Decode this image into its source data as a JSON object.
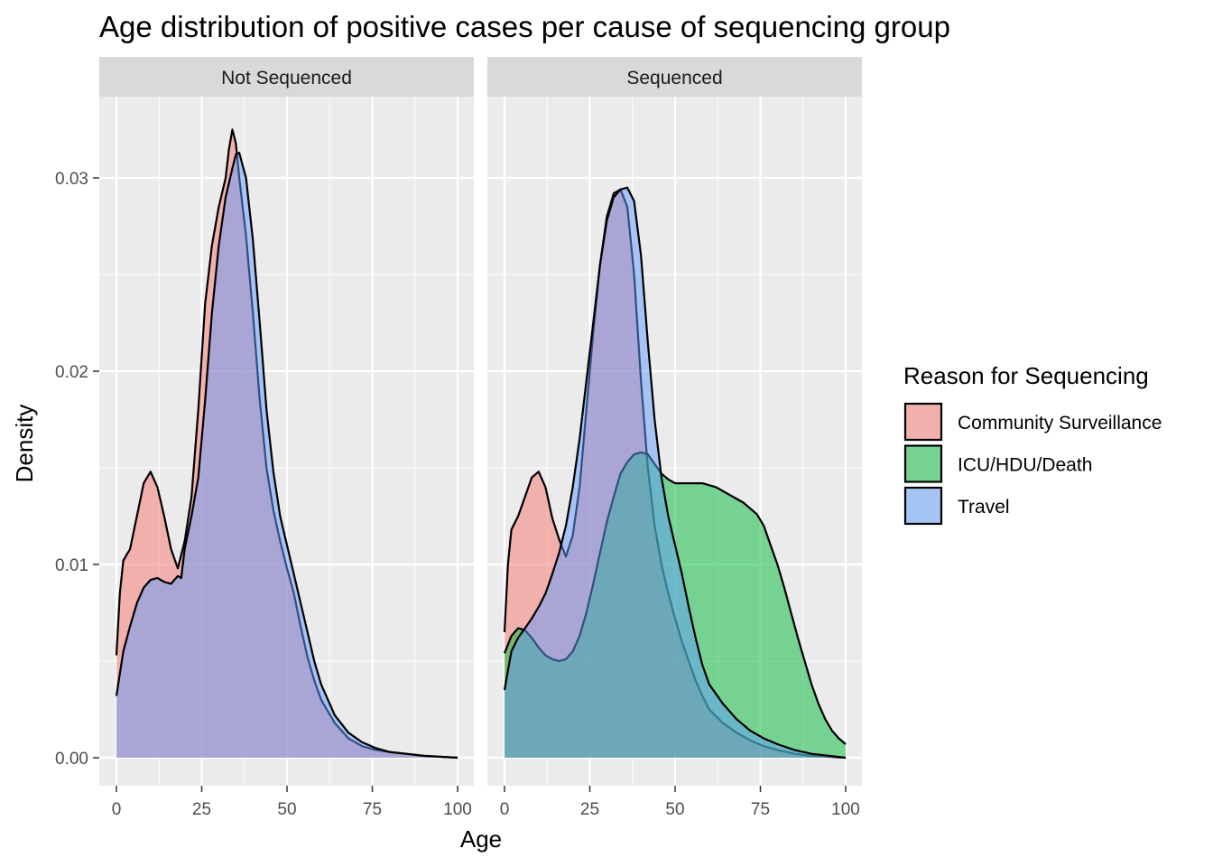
{
  "chart_data": {
    "type": "area",
    "title": "Age distribution of positive cases per cause of sequencing group",
    "xlabel": "Age",
    "ylabel": "Density",
    "xlim": [
      0,
      100
    ],
    "ylim": [
      0,
      0.033
    ],
    "x_ticks": [
      "0",
      "25",
      "50",
      "75",
      "100"
    ],
    "y_ticks": [
      "0.00",
      "0.01",
      "0.02",
      "0.03"
    ],
    "grid": true,
    "legend": {
      "title": "Reason for Sequencing",
      "placement": "right",
      "entries": [
        {
          "label": "Community Surveillance",
          "color": "#F8766D"
        },
        {
          "label": "ICU/HDU/Death",
          "color": "#00BA38"
        },
        {
          "label": "Travel",
          "color": "#619CFF"
        }
      ]
    },
    "panels": [
      {
        "label": "Not Sequenced",
        "series": [
          {
            "name": "Community Surveillance",
            "color": "#F8766D",
            "points": [
              [
                0,
                0.0053
              ],
              [
                1,
                0.0085
              ],
              [
                2,
                0.0102
              ],
              [
                4,
                0.0108
              ],
              [
                6,
                0.0125
              ],
              [
                8,
                0.0142
              ],
              [
                10,
                0.0148
              ],
              [
                12,
                0.014
              ],
              [
                14,
                0.0125
              ],
              [
                16,
                0.0108
              ],
              [
                18,
                0.0098
              ],
              [
                20,
                0.0112
              ],
              [
                22,
                0.0135
              ],
              [
                24,
                0.018
              ],
              [
                26,
                0.0235
              ],
              [
                28,
                0.0265
              ],
              [
                30,
                0.0285
              ],
              [
                32,
                0.03
              ],
              [
                33,
                0.0315
              ],
              [
                34,
                0.0325
              ],
              [
                35,
                0.0318
              ],
              [
                36,
                0.03
              ],
              [
                38,
                0.027
              ],
              [
                40,
                0.023
              ],
              [
                42,
                0.0185
              ],
              [
                44,
                0.015
              ],
              [
                46,
                0.0128
              ],
              [
                48,
                0.0112
              ],
              [
                50,
                0.0098
              ],
              [
                52,
                0.0085
              ],
              [
                54,
                0.0068
              ],
              [
                56,
                0.0052
              ],
              [
                58,
                0.004
              ],
              [
                60,
                0.003
              ],
              [
                64,
                0.0018
              ],
              [
                68,
                0.001
              ],
              [
                72,
                0.0006
              ],
              [
                76,
                0.0004
              ],
              [
                80,
                0.0003
              ],
              [
                85,
                0.0002
              ],
              [
                90,
                0.0001
              ],
              [
                100,
                0.0
              ]
            ]
          },
          {
            "name": "Travel",
            "color": "#619CFF",
            "points": [
              [
                0,
                0.0032
              ],
              [
                2,
                0.0055
              ],
              [
                4,
                0.0068
              ],
              [
                6,
                0.008
              ],
              [
                8,
                0.0088
              ],
              [
                10,
                0.0092
              ],
              [
                12,
                0.0093
              ],
              [
                14,
                0.0091
              ],
              [
                16,
                0.009
              ],
              [
                18,
                0.0094
              ],
              [
                19,
                0.0093
              ],
              [
                20,
                0.0108
              ],
              [
                22,
                0.0125
              ],
              [
                24,
                0.0145
              ],
              [
                26,
                0.0185
              ],
              [
                28,
                0.023
              ],
              [
                30,
                0.0265
              ],
              [
                32,
                0.029
              ],
              [
                34,
                0.0305
              ],
              [
                35,
                0.0312
              ],
              [
                36,
                0.0313
              ],
              [
                38,
                0.03
              ],
              [
                40,
                0.0268
              ],
              [
                42,
                0.0225
              ],
              [
                44,
                0.018
              ],
              [
                46,
                0.0148
              ],
              [
                48,
                0.0125
              ],
              [
                50,
                0.011
              ],
              [
                52,
                0.0095
              ],
              [
                54,
                0.008
              ],
              [
                56,
                0.0065
              ],
              [
                58,
                0.005
              ],
              [
                60,
                0.0038
              ],
              [
                64,
                0.0022
              ],
              [
                68,
                0.0013
              ],
              [
                72,
                0.0008
              ],
              [
                76,
                0.0005
              ],
              [
                80,
                0.0003
              ],
              [
                85,
                0.0002
              ],
              [
                90,
                0.0001
              ],
              [
                100,
                0.0
              ]
            ]
          }
        ]
      },
      {
        "label": "Sequenced",
        "series": [
          {
            "name": "Community Surveillance",
            "color": "#F8766D",
            "points": [
              [
                0,
                0.0065
              ],
              [
                1,
                0.01
              ],
              [
                2,
                0.0118
              ],
              [
                4,
                0.0125
              ],
              [
                6,
                0.0135
              ],
              [
                8,
                0.0145
              ],
              [
                10,
                0.0148
              ],
              [
                12,
                0.014
              ],
              [
                14,
                0.0124
              ],
              [
                16,
                0.0113
              ],
              [
                18,
                0.0104
              ],
              [
                20,
                0.0115
              ],
              [
                22,
                0.014
              ],
              [
                24,
                0.018
              ],
              [
                26,
                0.022
              ],
              [
                28,
                0.0255
              ],
              [
                30,
                0.028
              ],
              [
                32,
                0.0292
              ],
              [
                34,
                0.0294
              ],
              [
                36,
                0.0285
              ],
              [
                38,
                0.025
              ],
              [
                40,
                0.0195
              ],
              [
                42,
                0.015
              ],
              [
                44,
                0.012
              ],
              [
                46,
                0.01
              ],
              [
                48,
                0.0085
              ],
              [
                50,
                0.0072
              ],
              [
                52,
                0.006
              ],
              [
                54,
                0.005
              ],
              [
                56,
                0.004
              ],
              [
                58,
                0.0032
              ],
              [
                60,
                0.0025
              ],
              [
                64,
                0.0018
              ],
              [
                68,
                0.0013
              ],
              [
                72,
                0.0009
              ],
              [
                76,
                0.0006
              ],
              [
                80,
                0.0004
              ],
              [
                85,
                0.0002
              ],
              [
                90,
                0.0001
              ],
              [
                100,
                0.0
              ]
            ]
          },
          {
            "name": "ICU/HDU/Death",
            "color": "#00BA38",
            "points": [
              [
                0,
                0.0054
              ],
              [
                2,
                0.0063
              ],
              [
                4,
                0.0067
              ],
              [
                6,
                0.0066
              ],
              [
                8,
                0.0062
              ],
              [
                10,
                0.0057
              ],
              [
                12,
                0.0053
              ],
              [
                14,
                0.0051
              ],
              [
                16,
                0.005
              ],
              [
                18,
                0.0051
              ],
              [
                20,
                0.0055
              ],
              [
                22,
                0.0063
              ],
              [
                24,
                0.0075
              ],
              [
                26,
                0.009
              ],
              [
                28,
                0.0106
              ],
              [
                30,
                0.0122
              ],
              [
                32,
                0.0135
              ],
              [
                34,
                0.0147
              ],
              [
                36,
                0.0153
              ],
              [
                38,
                0.0157
              ],
              [
                40,
                0.0158
              ],
              [
                42,
                0.0157
              ],
              [
                44,
                0.0152
              ],
              [
                46,
                0.0147
              ],
              [
                48,
                0.0144
              ],
              [
                50,
                0.0142
              ],
              [
                54,
                0.0142
              ],
              [
                58,
                0.0142
              ],
              [
                62,
                0.014
              ],
              [
                66,
                0.0136
              ],
              [
                70,
                0.0132
              ],
              [
                74,
                0.0126
              ],
              [
                76,
                0.012
              ],
              [
                78,
                0.011
              ],
              [
                80,
                0.01
              ],
              [
                82,
                0.0088
              ],
              [
                84,
                0.0075
              ],
              [
                86,
                0.0062
              ],
              [
                88,
                0.005
              ],
              [
                90,
                0.0038
              ],
              [
                92,
                0.0028
              ],
              [
                94,
                0.002
              ],
              [
                96,
                0.0014
              ],
              [
                98,
                0.001
              ],
              [
                100,
                0.0007
              ]
            ]
          },
          {
            "name": "Travel",
            "color": "#619CFF",
            "points": [
              [
                0,
                0.0035
              ],
              [
                2,
                0.0055
              ],
              [
                4,
                0.0062
              ],
              [
                6,
                0.0067
              ],
              [
                8,
                0.0072
              ],
              [
                10,
                0.0078
              ],
              [
                12,
                0.0085
              ],
              [
                14,
                0.0095
              ],
              [
                16,
                0.0106
              ],
              [
                18,
                0.012
              ],
              [
                20,
                0.014
              ],
              [
                22,
                0.0165
              ],
              [
                24,
                0.0195
              ],
              [
                26,
                0.0225
              ],
              [
                28,
                0.0255
              ],
              [
                30,
                0.0278
              ],
              [
                32,
                0.029
              ],
              [
                34,
                0.0294
              ],
              [
                36,
                0.0295
              ],
              [
                38,
                0.0288
              ],
              [
                40,
                0.026
              ],
              [
                42,
                0.0215
              ],
              [
                44,
                0.0175
              ],
              [
                46,
                0.0145
              ],
              [
                48,
                0.0125
              ],
              [
                50,
                0.011
              ],
              [
                52,
                0.0095
              ],
              [
                54,
                0.0078
              ],
              [
                56,
                0.0062
              ],
              [
                58,
                0.0048
              ],
              [
                60,
                0.0038
              ],
              [
                64,
                0.0028
              ],
              [
                68,
                0.002
              ],
              [
                72,
                0.0014
              ],
              [
                76,
                0.001
              ],
              [
                80,
                0.0007
              ],
              [
                85,
                0.0004
              ],
              [
                90,
                0.0002
              ],
              [
                100,
                0.0
              ]
            ]
          }
        ]
      }
    ]
  }
}
